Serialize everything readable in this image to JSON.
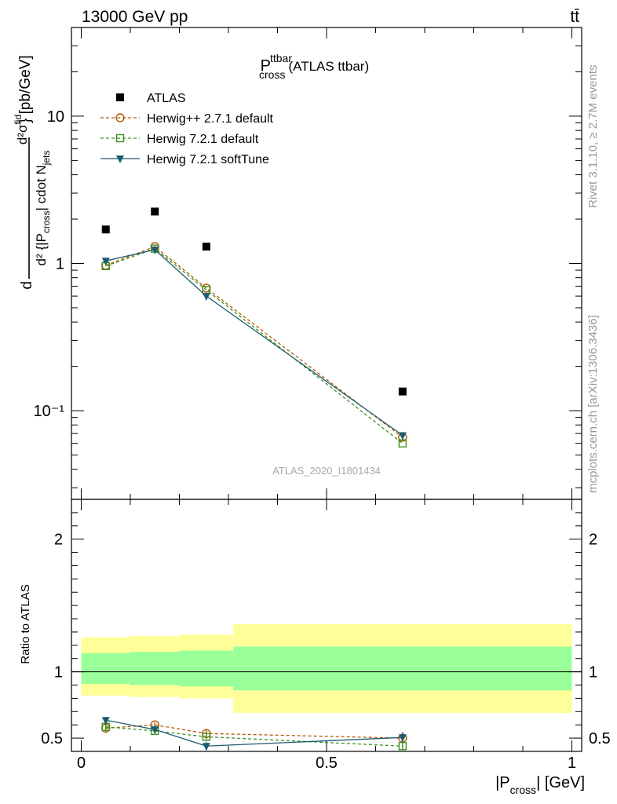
{
  "header": {
    "energy_label": "13000 GeV pp",
    "process_label": "tt̄"
  },
  "side_labels": {
    "rivet": "Rivet 3.1.10, ≥ 2.7M events",
    "source": "mcplots.cern.ch [arXiv:1306.3436]"
  },
  "title": {
    "main": "P",
    "sup": "ttbar",
    "sub": "cross",
    "suffix": "(ATLAS ttbar)"
  },
  "analysis_id": "ATLAS_2020_I1801434",
  "chart_data": [
    {
      "type": "scatter",
      "panel": "main",
      "ylabel": "d²σ^fid / d²{|P_cross| cdot N_jets} [pb/GeV]",
      "yscale": "log",
      "xlim": [
        -0.02,
        1.02
      ],
      "ylim": [
        0.025,
        40
      ],
      "y_tick_labels": [
        "10⁻¹",
        "1",
        "10"
      ],
      "legend_position": "top-left",
      "x": [
        0.05,
        0.15,
        0.255,
        0.655
      ],
      "x_bin_edges": [
        0,
        0.1,
        0.2,
        0.31,
        1.0
      ],
      "series": [
        {
          "name": "ATLAS",
          "marker": "filled-square",
          "color": "#000000",
          "line": "none",
          "values": [
            1.7,
            2.25,
            1.3,
            0.135
          ]
        },
        {
          "name": "Herwig++ 2.7.1 default",
          "marker": "open-circle",
          "color": "#b35900",
          "line": "dashed",
          "values": [
            0.97,
            1.3,
            0.68,
            0.066
          ]
        },
        {
          "name": "Herwig 7.2.1 default",
          "marker": "open-square",
          "color": "#3f8f1f",
          "line": "dashed",
          "values": [
            0.96,
            1.26,
            0.66,
            0.06
          ]
        },
        {
          "name": "Herwig 7.2.1 softTune",
          "marker": "filled-triangle-down",
          "color": "#1d5b70",
          "line": "solid",
          "values": [
            1.04,
            1.24,
            0.6,
            0.068
          ]
        }
      ]
    },
    {
      "type": "scatter",
      "panel": "ratio",
      "ylabel": "Ratio to ATLAS",
      "xlabel": "|P_cross| [GeV]",
      "xlim": [
        -0.02,
        1.02
      ],
      "ylim": [
        0.4,
        2.3
      ],
      "x_tick_labels": [
        "0",
        "0.5",
        "1"
      ],
      "y_tick_labels": [
        "0.5",
        "1",
        "2"
      ],
      "reference_line": 1,
      "bands": [
        {
          "name": "total uncertainty",
          "color": "#ffff99",
          "bins": [
            [
              0,
              0.1
            ],
            [
              0.1,
              0.2
            ],
            [
              0.2,
              0.31
            ],
            [
              0.31,
              1.0
            ]
          ],
          "lo": [
            0.82,
            0.81,
            0.8,
            0.69
          ],
          "hi": [
            1.26,
            1.27,
            1.28,
            1.36
          ]
        },
        {
          "name": "stat uncertainty",
          "color": "#99ff99",
          "bins": [
            [
              0,
              0.1
            ],
            [
              0.1,
              0.2
            ],
            [
              0.2,
              0.31
            ],
            [
              0.31,
              1.0
            ]
          ],
          "lo": [
            0.91,
            0.9,
            0.89,
            0.86
          ],
          "hi": [
            1.14,
            1.15,
            1.16,
            1.19
          ]
        }
      ],
      "x": [
        0.05,
        0.15,
        0.255,
        0.655
      ],
      "series": [
        {
          "name": "Herwig++ 2.7.1 default",
          "values": [
            0.575,
            0.6,
            0.535,
            0.5
          ],
          "err": [
            0.03,
            0.02,
            0.03,
            0.03
          ]
        },
        {
          "name": "Herwig 7.2.1 default",
          "values": [
            0.585,
            0.555,
            0.51,
            0.44
          ],
          "err": [
            0.02,
            0.02,
            0.03,
            0.03
          ]
        },
        {
          "name": "Herwig 7.2.1 softTune",
          "values": [
            0.635,
            0.565,
            0.44,
            0.505
          ],
          "err": [
            0.02,
            0.03,
            0.03,
            0.04
          ]
        }
      ]
    }
  ]
}
